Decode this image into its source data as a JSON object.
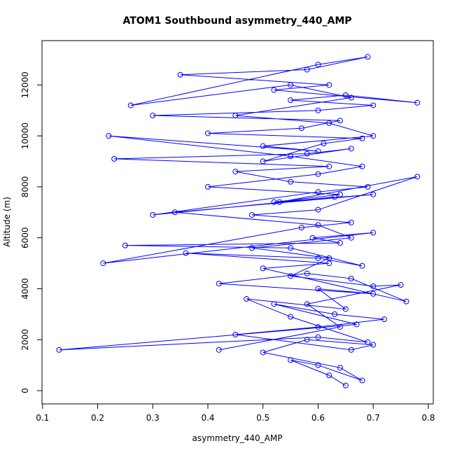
{
  "chart_data": {
    "type": "line",
    "title": "ATOM1 Southbound asymmetry_440_AMP",
    "x_label": "asymmetry_440_AMP",
    "y_label": "Altitude (m)",
    "color": "#0000ff",
    "xlim": [
      0.099,
      0.809
    ],
    "ylim": [
      -520,
      13740
    ],
    "xticks": [
      0.1,
      0.2,
      0.3,
      0.4,
      0.5,
      0.6,
      0.7,
      0.8
    ],
    "yticks": [
      0,
      2000,
      4000,
      6000,
      8000,
      10000,
      12000
    ],
    "x": [
      0.65,
      0.62,
      0.55,
      0.6,
      0.68,
      0.64,
      0.5,
      0.58,
      0.7,
      0.66,
      0.45,
      0.6,
      0.72,
      0.63,
      0.52,
      0.67,
      0.13,
      0.6,
      0.69,
      0.55,
      0.47,
      0.65,
      0.6,
      0.7,
      0.42,
      0.58,
      0.66,
      0.76,
      0.5,
      0.62,
      0.36,
      0.6,
      0.68,
      0.55,
      0.25,
      0.64,
      0.59,
      0.7,
      0.21,
      0.57,
      0.66,
      0.48,
      0.6,
      0.78,
      0.53,
      0.63,
      0.3,
      0.6,
      0.69,
      0.55,
      0.45,
      0.62,
      0.23,
      0.58,
      0.66,
      0.5,
      0.61,
      0.68,
      0.4,
      0.57,
      0.64,
      0.3,
      0.6,
      0.7,
      0.55,
      0.65,
      0.78,
      0.52,
      0.62,
      0.35,
      0.58,
      0.69,
      0.6,
      0.26,
      0.55,
      0.66,
      0.45,
      0.62,
      0.7,
      0.5,
      0.6,
      0.22,
      0.55,
      0.68,
      0.6,
      0.4,
      0.64,
      0.52,
      0.7,
      0.34,
      0.6,
      0.66,
      0.48,
      0.62,
      0.55,
      0.7,
      0.75,
      0.58,
      0.64,
      0.42
    ],
    "values": [
      200,
      600,
      1200,
      1000,
      400,
      900,
      1500,
      2000,
      1800,
      1600,
      2200,
      2500,
      2800,
      3000,
      3400,
      2600,
      1600,
      2100,
      1900,
      2900,
      3600,
      3200,
      4000,
      3800,
      4200,
      4600,
      4400,
      3500,
      4800,
      5000,
      5400,
      5200,
      4900,
      5600,
      5700,
      5800,
      6000,
      6200,
      5000,
      6400,
      6600,
      6900,
      7100,
      8400,
      7400,
      7600,
      6900,
      7800,
      8000,
      8200,
      8600,
      8800,
      9100,
      9300,
      9500,
      9000,
      9700,
      9900,
      10100,
      10300,
      10600,
      10800,
      11000,
      11200,
      11400,
      11600,
      11300,
      11800,
      12000,
      12400,
      12600,
      13100,
      12800,
      11200,
      12000,
      11500,
      10800,
      10500,
      10000,
      9600,
      9400,
      10000,
      9200,
      8800,
      8500,
      8000,
      7700,
      7400,
      7700,
      7000,
      6500,
      6000,
      5600,
      5200,
      4500,
      4100,
      4150,
      3400,
      2500,
      1600
    ]
  }
}
